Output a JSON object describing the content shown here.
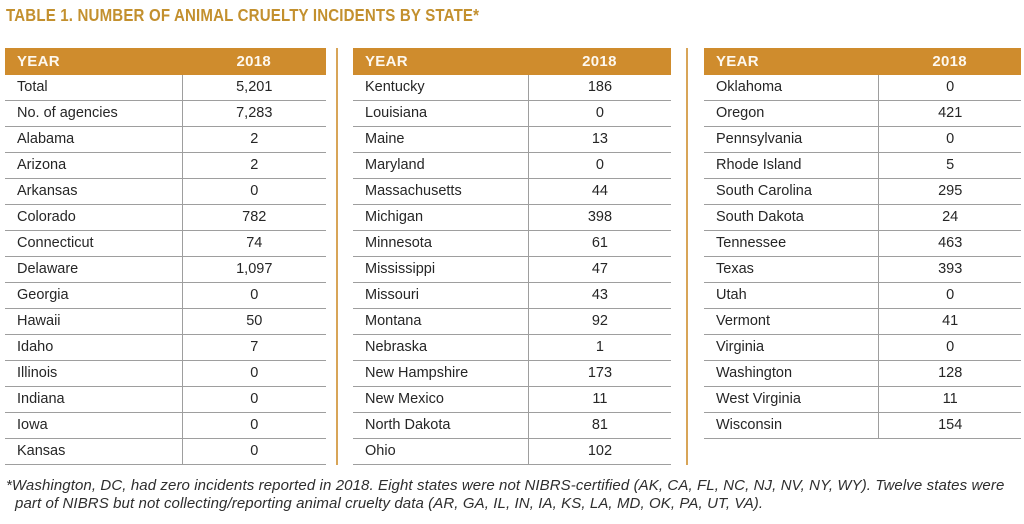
{
  "title": "TABLE 1. NUMBER OF ANIMAL CRUELTY INCIDENTS BY STATE*",
  "header": {
    "year_label": "YEAR",
    "value_label": "2018"
  },
  "footnote": "*Washington, DC, had zero incidents reported in 2018. Eight states were not NIBRS-certified (AK, CA, FL, NC, NJ, NV, NY, WY). Twelve states were part of NIBRS but not collecting/reporting animal cruelty data (AR, GA, IL, IN, IA, KS, LA, MD, OK, PA, UT, VA).",
  "colors": {
    "accent_orange": "#cf8c2d",
    "title_gold": "#c3902e",
    "header_text": "#fdf8ef",
    "row_border_gray": "#9e9e9e",
    "body_text": "#262626"
  },
  "chart_data": {
    "type": "table",
    "title": "TABLE 1. NUMBER OF ANIMAL CRUELTY INCIDENTS BY STATE*",
    "columns": [
      "YEAR",
      "2018"
    ],
    "panels": [
      {
        "rows": [
          [
            "Total",
            "5,201"
          ],
          [
            "No. of agencies",
            "7,283"
          ],
          [
            "Alabama",
            "2"
          ],
          [
            "Arizona",
            "2"
          ],
          [
            "Arkansas",
            "0"
          ],
          [
            "Colorado",
            "782"
          ],
          [
            "Connecticut",
            "74"
          ],
          [
            "Delaware",
            "1,097"
          ],
          [
            "Georgia",
            "0"
          ],
          [
            "Hawaii",
            "50"
          ],
          [
            "Idaho",
            "7"
          ],
          [
            "Illinois",
            "0"
          ],
          [
            "Indiana",
            "0"
          ],
          [
            "Iowa",
            "0"
          ],
          [
            "Kansas",
            "0"
          ]
        ]
      },
      {
        "rows": [
          [
            "Kentucky",
            "186"
          ],
          [
            "Louisiana",
            "0"
          ],
          [
            "Maine",
            "13"
          ],
          [
            "Maryland",
            "0"
          ],
          [
            "Massachusetts",
            "44"
          ],
          [
            "Michigan",
            "398"
          ],
          [
            "Minnesota",
            "61"
          ],
          [
            "Mississippi",
            "47"
          ],
          [
            "Missouri",
            "43"
          ],
          [
            "Montana",
            "92"
          ],
          [
            "Nebraska",
            "1"
          ],
          [
            "New Hampshire",
            "173"
          ],
          [
            "New Mexico",
            "11"
          ],
          [
            "North Dakota",
            "81"
          ],
          [
            "Ohio",
            "102"
          ]
        ]
      },
      {
        "rows": [
          [
            "Oklahoma",
            "0"
          ],
          [
            "Oregon",
            "421"
          ],
          [
            "Pennsylvania",
            "0"
          ],
          [
            "Rhode Island",
            "5"
          ],
          [
            "South Carolina",
            "295"
          ],
          [
            "South Dakota",
            "24"
          ],
          [
            "Tennessee",
            "463"
          ],
          [
            "Texas",
            "393"
          ],
          [
            "Utah",
            "0"
          ],
          [
            "Vermont",
            "41"
          ],
          [
            "Virginia",
            "0"
          ],
          [
            "Washington",
            "128"
          ],
          [
            "West Virginia",
            "11"
          ],
          [
            "Wisconsin",
            "154"
          ]
        ]
      }
    ]
  }
}
